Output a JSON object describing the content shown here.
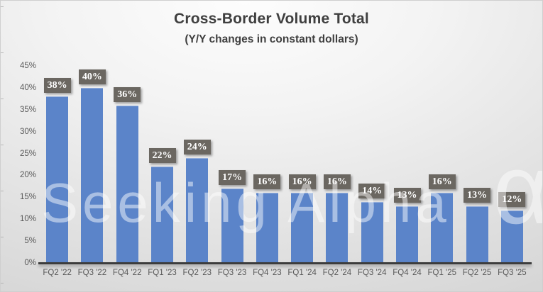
{
  "chart": {
    "title": "Cross-Border Volume Total",
    "subtitle": "(Y/Y changes in constant dollars)",
    "watermark_text": "Seeking Alpha",
    "watermark_symbol": "α"
  },
  "chart_data": {
    "type": "bar",
    "title": "Cross-Border Volume Total",
    "subtitle": "(Y/Y changes in constant dollars)",
    "categories": [
      "FQ2 '22",
      "FQ3 '22",
      "FQ4 '22",
      "FQ1 '23",
      "FQ2 '23",
      "FQ3 '23",
      "FQ4 '23",
      "FQ1 '24",
      "FQ2 '24",
      "FQ3 '24",
      "FQ4 '24",
      "FQ1 '25",
      "FQ2 '25",
      "FQ3 '25"
    ],
    "values": [
      38,
      40,
      36,
      22,
      24,
      17,
      16,
      16,
      16,
      14,
      13,
      16,
      13,
      12
    ],
    "value_labels": [
      "38%",
      "40%",
      "36%",
      "22%",
      "24%",
      "17%",
      "16%",
      "16%",
      "16%",
      "14%",
      "13%",
      "16%",
      "13%",
      "12%"
    ],
    "y_tick_labels": [
      "0%",
      "5%",
      "10%",
      "15%",
      "20%",
      "25%",
      "30%",
      "35%",
      "40%",
      "45%"
    ],
    "ylim": [
      0,
      45
    ],
    "y_tick_step": 5,
    "xlabel": "",
    "ylabel": "",
    "grid": false,
    "legend_position": "none",
    "bar_color": "#5b84c9",
    "data_label_bg_color": "#6b6761",
    "data_label_text_color": "#ffffff",
    "axis_text_color": "#595959",
    "title_color": "#3f3f3f",
    "watermark": "Seeking Alpha α"
  }
}
